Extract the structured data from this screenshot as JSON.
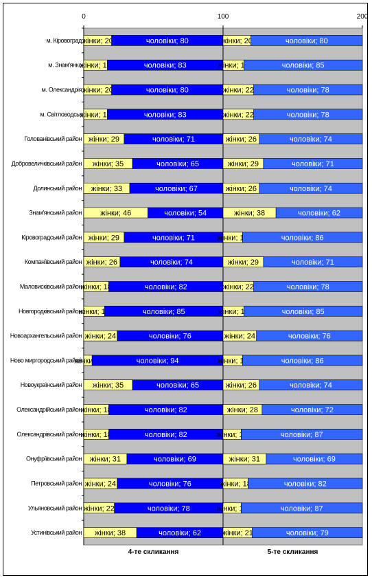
{
  "chart_data": {
    "type": "bar",
    "stacked": true,
    "orientation": "horizontal",
    "xlim": [
      0,
      200
    ],
    "x_ticks": [
      "0",
      "100",
      "200"
    ],
    "grid": true,
    "panels": [
      "4-те скликання",
      "5-те скликання"
    ],
    "categories": [
      "м. Кіровоград",
      "м. Знам'янка",
      "м. Олександрія",
      "м. Світловодськ",
      "Голованівський район",
      "Добровеличківський район",
      "Долинський район",
      "Знам'янський район",
      "Кіровоградський район",
      "Компаніївський район",
      "Маловисківський район",
      "Новгородківський район",
      "Новоархангельський район",
      "Ново миргородський район",
      "Новоукраїнський район",
      "Олександрійський район",
      "Олександрівський район",
      "Онуфріївський район",
      "Петровський район",
      "Ульяновський район",
      "Устинівський район"
    ],
    "series": [
      {
        "name": "жінки",
        "panel": 0,
        "color": "#FFFF99",
        "values": [
          20,
          17,
          20,
          17,
          29,
          35,
          33,
          46,
          29,
          26,
          18,
          15,
          24,
          6,
          35,
          18,
          18,
          31,
          24,
          22,
          38
        ]
      },
      {
        "name": "чоловіки",
        "panel": 0,
        "color": "#0000FF",
        "values": [
          80,
          83,
          80,
          83,
          71,
          65,
          67,
          54,
          71,
          74,
          82,
          85,
          76,
          94,
          65,
          82,
          82,
          69,
          76,
          78,
          62
        ]
      },
      {
        "name": "жінки",
        "panel": 1,
        "color": "#FFFF99",
        "values": [
          20,
          15,
          22,
          22,
          26,
          29,
          26,
          38,
          14,
          29,
          22,
          15,
          24,
          14,
          26,
          28,
          13,
          31,
          18,
          13,
          21
        ]
      },
      {
        "name": "чоловіки",
        "panel": 1,
        "color": "#3366FF",
        "values": [
          80,
          85,
          78,
          78,
          74,
          71,
          74,
          62,
          86,
          71,
          78,
          85,
          76,
          86,
          74,
          72,
          87,
          69,
          82,
          87,
          79
        ]
      }
    ]
  }
}
